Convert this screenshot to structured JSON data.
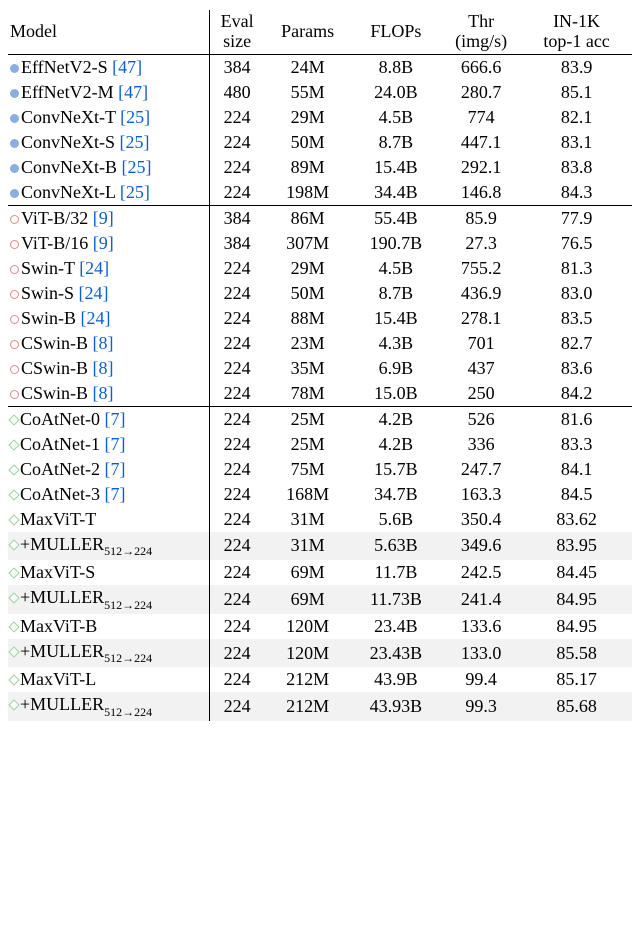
{
  "header": {
    "model": "Model",
    "eval1": "Eval",
    "eval2": "size",
    "params": "Params",
    "flops": "FLOPs",
    "thr1": "Thr",
    "thr2": "(img/s)",
    "acc1": "IN-1K",
    "acc2": "top-1 acc"
  },
  "markers": {
    "blue": "filled-circle",
    "red": "open-circle",
    "green": "open-diamond"
  },
  "colors": {
    "reference_link": "#0b5ed7",
    "marker_blue": "#8aaee0",
    "marker_red_border": "#e48b8b",
    "marker_green_border": "#9ad19a",
    "highlight_bg": "#f2f2f2",
    "rule": "#000000",
    "background": "#ffffff"
  },
  "rows": [
    {
      "marker": "blue",
      "name": "EffNetV2-S",
      "ref": "[47]",
      "eval": "384",
      "params": "24M",
      "flops": "8.8B",
      "thr": "666.6",
      "acc": "83.9",
      "section_top": true
    },
    {
      "marker": "blue",
      "name": "EffNetV2-M",
      "ref": "[47]",
      "eval": "480",
      "params": "55M",
      "flops": "24.0B",
      "thr": "280.7",
      "acc": "85.1"
    },
    {
      "marker": "blue",
      "name": "ConvNeXt-T",
      "ref": "[25]",
      "eval": "224",
      "params": "29M",
      "flops": "4.5B",
      "thr": "774",
      "acc": "82.1"
    },
    {
      "marker": "blue",
      "name": "ConvNeXt-S",
      "ref": "[25]",
      "eval": "224",
      "params": "50M",
      "flops": "8.7B",
      "thr": "447.1",
      "acc": "83.1"
    },
    {
      "marker": "blue",
      "name": "ConvNeXt-B",
      "ref": "[25]",
      "eval": "224",
      "params": "89M",
      "flops": "15.4B",
      "thr": "292.1",
      "acc": "83.8"
    },
    {
      "marker": "blue",
      "name": "ConvNeXt-L",
      "ref": "[25]",
      "eval": "224",
      "params": "198M",
      "flops": "34.4B",
      "thr": "146.8",
      "acc": "84.3"
    },
    {
      "marker": "red",
      "name": "ViT-B/32",
      "ref": "[9]",
      "eval": "384",
      "params": "86M",
      "flops": "55.4B",
      "thr": "85.9",
      "acc": "77.9",
      "section_top": true
    },
    {
      "marker": "red",
      "name": "ViT-B/16",
      "ref": "[9]",
      "eval": "384",
      "params": "307M",
      "flops": "190.7B",
      "thr": "27.3",
      "acc": "76.5"
    },
    {
      "marker": "red",
      "name": "Swin-T",
      "ref": "[24]",
      "eval": "224",
      "params": "29M",
      "flops": "4.5B",
      "thr": "755.2",
      "acc": "81.3"
    },
    {
      "marker": "red",
      "name": "Swin-S",
      "ref": "[24]",
      "eval": "224",
      "params": "50M",
      "flops": "8.7B",
      "thr": "436.9",
      "acc": "83.0"
    },
    {
      "marker": "red",
      "name": "Swin-B",
      "ref": "[24]",
      "eval": "224",
      "params": "88M",
      "flops": "15.4B",
      "thr": "278.1",
      "acc": "83.5"
    },
    {
      "marker": "red",
      "name": "CSwin-B",
      "ref": "[8]",
      "eval": "224",
      "params": "23M",
      "flops": "4.3B",
      "thr": "701",
      "acc": "82.7"
    },
    {
      "marker": "red",
      "name": "CSwin-B",
      "ref": "[8]",
      "eval": "224",
      "params": "35M",
      "flops": "6.9B",
      "thr": "437",
      "acc": "83.6"
    },
    {
      "marker": "red",
      "name": "CSwin-B",
      "ref": "[8]",
      "eval": "224",
      "params": "78M",
      "flops": "15.0B",
      "thr": "250",
      "acc": "84.2"
    },
    {
      "marker": "green",
      "name": "CoAtNet-0",
      "ref": "[7]",
      "eval": "224",
      "params": "25M",
      "flops": "4.2B",
      "thr": "526",
      "acc": "81.6",
      "section_top": true
    },
    {
      "marker": "green",
      "name": "CoAtNet-1",
      "ref": "[7]",
      "eval": "224",
      "params": "25M",
      "flops": "4.2B",
      "thr": "336",
      "acc": "83.3"
    },
    {
      "marker": "green",
      "name": "CoAtNet-2",
      "ref": "[7]",
      "eval": "224",
      "params": "75M",
      "flops": "15.7B",
      "thr": "247.7",
      "acc": "84.1"
    },
    {
      "marker": "green",
      "name": "CoAtNet-3",
      "ref": "[7]",
      "eval": "224",
      "params": "168M",
      "flops": "34.7B",
      "thr": "163.3",
      "acc": "84.5"
    },
    {
      "marker": "green",
      "name": "MaxViT-T",
      "ref": "",
      "eval": "224",
      "params": "31M",
      "flops": "5.6B",
      "thr": "350.4",
      "acc": "83.62"
    },
    {
      "marker": "green",
      "name": "+MULLER",
      "sub": "512→224",
      "ref": "",
      "eval": "224",
      "params": "31M",
      "flops": "5.63B",
      "thr": "349.6",
      "acc": "83.95",
      "highlight": true
    },
    {
      "marker": "green",
      "name": "MaxViT-S",
      "ref": "",
      "eval": "224",
      "params": "69M",
      "flops": "11.7B",
      "thr": "242.5",
      "acc": "84.45"
    },
    {
      "marker": "green",
      "name": "+MULLER",
      "sub": "512→224",
      "ref": "",
      "eval": "224",
      "params": "69M",
      "flops": "11.73B",
      "thr": "241.4",
      "acc": "84.95",
      "highlight": true
    },
    {
      "marker": "green",
      "name": "MaxViT-B",
      "ref": "",
      "eval": "224",
      "params": "120M",
      "flops": "23.4B",
      "thr": "133.6",
      "acc": "84.95"
    },
    {
      "marker": "green",
      "name": "+MULLER",
      "sub": "512→224",
      "ref": "",
      "eval": "224",
      "params": "120M",
      "flops": "23.43B",
      "thr": "133.0",
      "acc": "85.58",
      "highlight": true
    },
    {
      "marker": "green",
      "name": "MaxViT-L",
      "ref": "",
      "eval": "224",
      "params": "212M",
      "flops": "43.9B",
      "thr": "99.4",
      "acc": "85.17"
    },
    {
      "marker": "green",
      "name": "+MULLER",
      "sub": "512→224",
      "ref": "",
      "eval": "224",
      "params": "212M",
      "flops": "43.93B",
      "thr": "99.3",
      "acc": "85.68",
      "highlight": true
    }
  ]
}
